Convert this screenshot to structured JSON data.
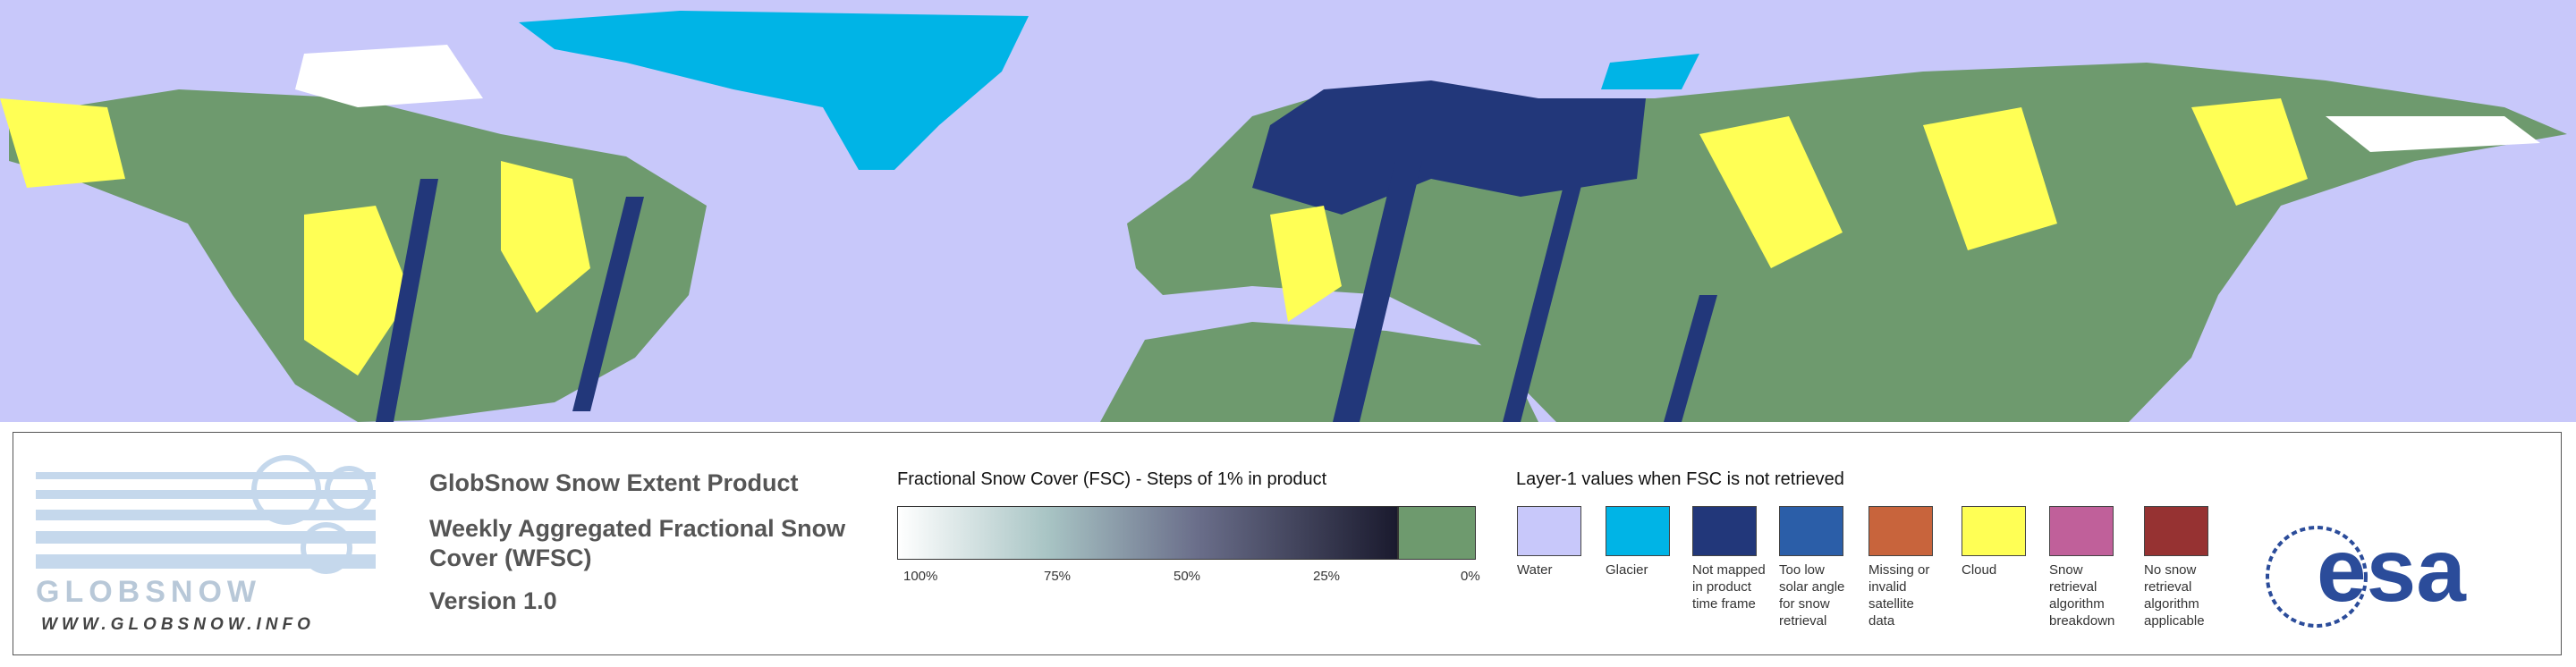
{
  "product": {
    "title": "GlobSnow Snow Extent Product",
    "subtitle": "Weekly Aggregated Fractional Snow Cover (WFSC)",
    "version": "Version 1.0"
  },
  "logos": {
    "wordmark": "GLOBSNOW",
    "url": "WWW.GLOBSNOW.INFO",
    "agency": "esa"
  },
  "fsc_scale": {
    "title": "Fractional Snow Cover (FSC) - Steps of 1% in product",
    "labels": [
      "100%",
      "75%",
      "50%",
      "25%",
      "0%"
    ]
  },
  "layer1": {
    "title": "Layer-1 values when FSC is not retrieved",
    "items": [
      {
        "label": "Water",
        "color": "#c8c8fa"
      },
      {
        "label": "Glacier",
        "color": "#00b4e6"
      },
      {
        "label": "Not mapped in product time frame",
        "color": "#22377a"
      },
      {
        "label": "Too low solar angle for snow retrieval",
        "color": "#2b5ea8"
      },
      {
        "label": "Missing or invalid satellite data",
        "color": "#c8643c"
      },
      {
        "label": "Cloud",
        "color": "#ffff55"
      },
      {
        "label": "Snow retrieval algorithm breakdown",
        "color": "#c0609a"
      },
      {
        "label": "No snow retrieval algorithm applicable",
        "color": "#963232"
      }
    ]
  }
}
